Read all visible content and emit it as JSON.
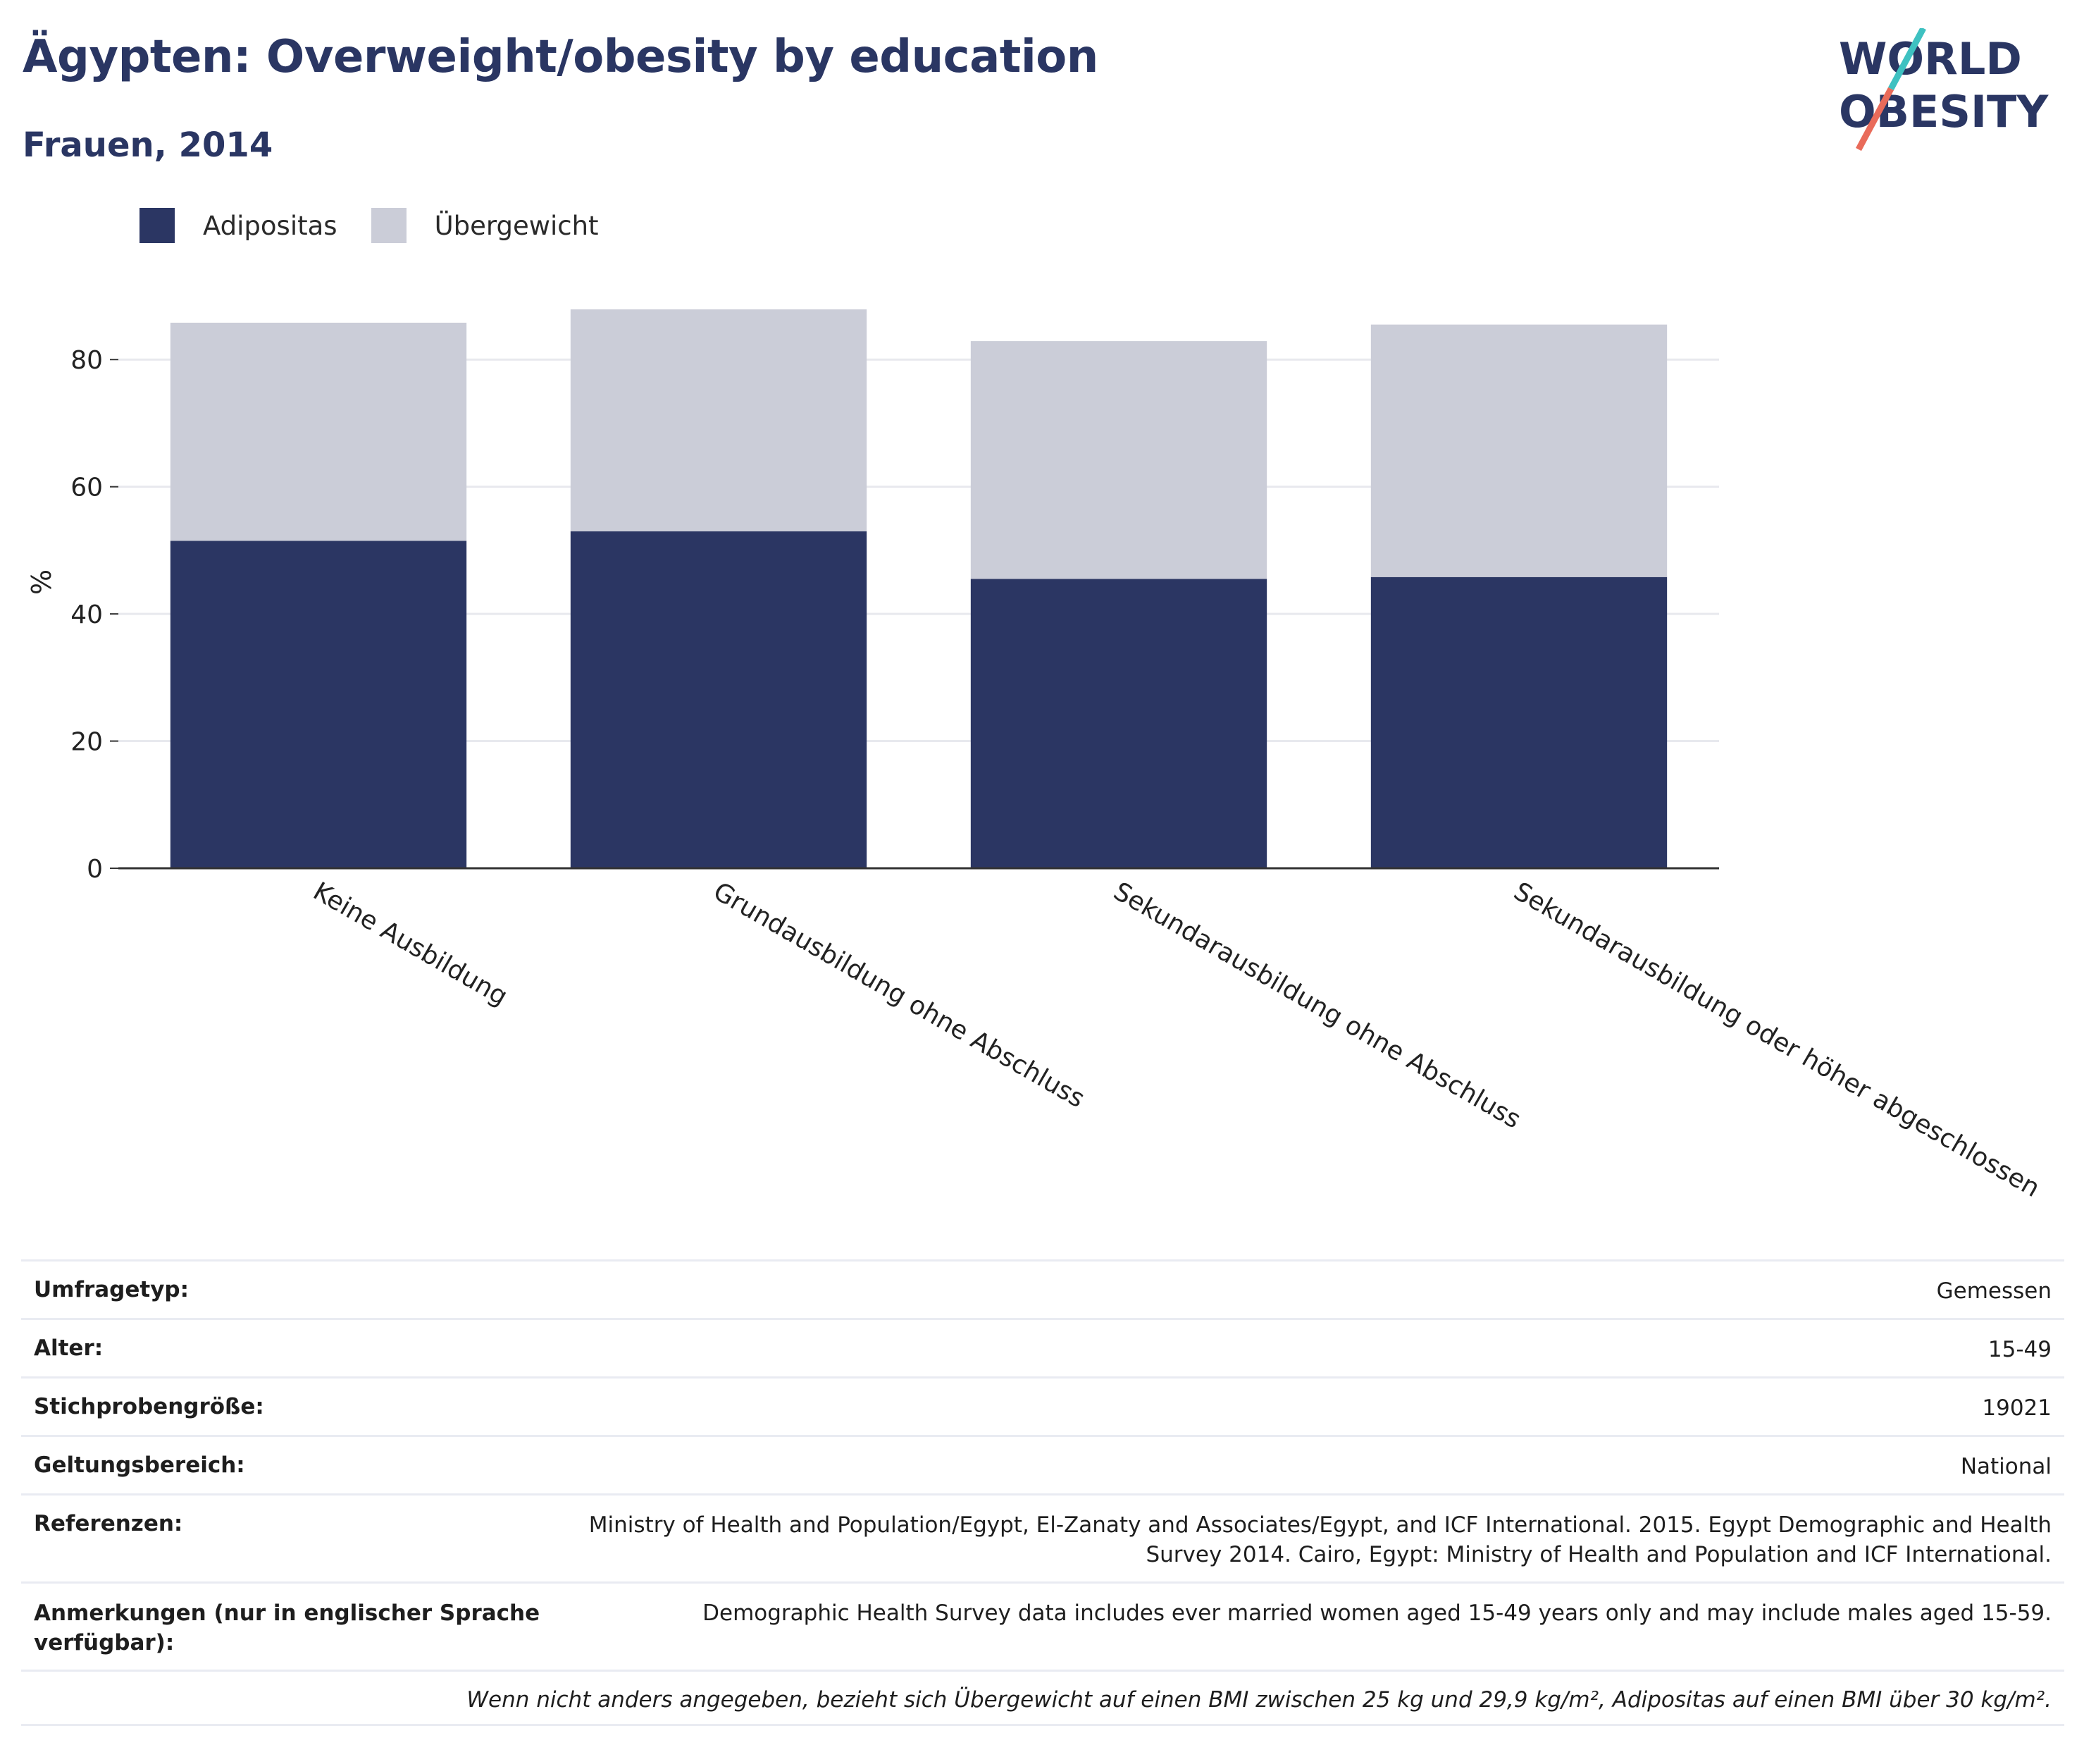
{
  "header": {
    "title": "Ägypten: Overweight/obesity by education",
    "subtitle": "Frauen, 2014",
    "logo_text": [
      "WORLD",
      "OBESITY"
    ]
  },
  "colors": {
    "obesity": "#2b3663",
    "overweight": "#cbcdd8",
    "logo_teal": "#3ec1c1",
    "logo_coral": "#e96b5a"
  },
  "legend": {
    "obesity_label": "Adipositas",
    "overweight_label": "Übergewicht"
  },
  "chart_data": {
    "type": "bar",
    "stacked": true,
    "title": "Ägypten: Overweight/obesity by education",
    "subtitle": "Frauen, 2014",
    "ylabel": "%",
    "ylim": [
      0,
      90
    ],
    "yticks": [
      0,
      20,
      40,
      60,
      80
    ],
    "grid": true,
    "legend_position": "top-left",
    "categories": [
      "Keine Ausbildung",
      "Grundausbildung ohne Abschluss",
      "Sekundarausbildung ohne Abschluss",
      "Sekundarausbildung oder höher abgeschlossen"
    ],
    "series": [
      {
        "name": "Adipositas",
        "values": [
          51.5,
          53.0,
          45.5,
          45.8
        ]
      },
      {
        "name": "Übergewicht",
        "values": [
          34.3,
          34.9,
          37.4,
          39.7
        ]
      }
    ]
  },
  "info": {
    "survey_type": {
      "label": "Umfragetyp:",
      "value": "Gemessen"
    },
    "age": {
      "label": "Alter:",
      "value": "15-49"
    },
    "sample_size": {
      "label": "Stichprobengröße:",
      "value": "19021"
    },
    "scope": {
      "label": "Geltungsbereich:",
      "value": "National"
    },
    "references": {
      "label": "Referenzen:",
      "value_line1": "Ministry of Health and Population/Egypt, El-Zanaty and Associates/Egypt, and ICF International. 2015. Egypt Demographic and Health",
      "value_line2": "Survey 2014. Cairo, Egypt: Ministry of Health and Population and ICF International."
    },
    "notes": {
      "label_line1": "Anmerkungen (nur in englischer Sprache",
      "label_line2": "verfügbar):",
      "value": "Demographic Health Survey data includes ever married women aged 15-49 years only and may include males aged 15-59."
    },
    "footnote": "Wenn nicht anders angegeben, bezieht sich Übergewicht auf einen BMI zwischen 25 kg und 29,9 kg/m², Adipositas auf einen BMI über 30 kg/m²."
  }
}
